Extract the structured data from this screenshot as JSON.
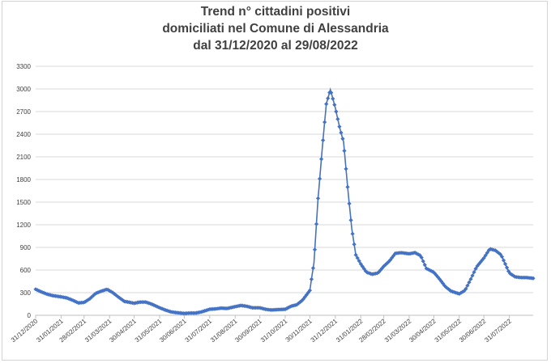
{
  "chart_data": {
    "type": "line",
    "title": [
      "Trend n° cittadini positivi",
      "domiciliati nel Comune di Alessandria",
      "dal 31/12/2020 al 29/08/2022"
    ],
    "xlabel": "",
    "ylabel": "",
    "ylim": [
      0,
      3300
    ],
    "y_ticks": [
      0,
      300,
      600,
      900,
      1200,
      1500,
      1800,
      2100,
      2400,
      2700,
      3000,
      3300
    ],
    "x_ticks": [
      "31/12/2020",
      "31/01/2021",
      "28/02/2021",
      "31/03/2021",
      "30/04/2021",
      "31/05/2021",
      "30/06/2021",
      "31/07/2021",
      "31/08/2021",
      "30/09/2021",
      "31/10/2021",
      "30/11/2021",
      "31/12/2021",
      "31/01/2022",
      "28/02/2022",
      "31/03/2022",
      "30/04/2022",
      "31/05/2022",
      "30/06/2022",
      "31/07/2022"
    ],
    "x_range": [
      "2020-12-31",
      "2022-08-29"
    ],
    "grid": "horizontal",
    "legend": "none",
    "series": [
      {
        "color": "#4472c4",
        "marker": "diamond",
        "points": [
          [
            "2020-12-31",
            345
          ],
          [
            "2021-01-07",
            310
          ],
          [
            "2021-01-14",
            280
          ],
          [
            "2021-01-21",
            260
          ],
          [
            "2021-01-31",
            245
          ],
          [
            "2021-02-07",
            230
          ],
          [
            "2021-02-14",
            200
          ],
          [
            "2021-02-21",
            165
          ],
          [
            "2021-02-28",
            170
          ],
          [
            "2021-03-07",
            220
          ],
          [
            "2021-03-14",
            290
          ],
          [
            "2021-03-21",
            320
          ],
          [
            "2021-03-28",
            345
          ],
          [
            "2021-04-04",
            300
          ],
          [
            "2021-04-11",
            240
          ],
          [
            "2021-04-18",
            185
          ],
          [
            "2021-04-30",
            160
          ],
          [
            "2021-05-07",
            175
          ],
          [
            "2021-05-14",
            175
          ],
          [
            "2021-05-21",
            150
          ],
          [
            "2021-05-31",
            100
          ],
          [
            "2021-06-07",
            70
          ],
          [
            "2021-06-14",
            45
          ],
          [
            "2021-06-21",
            35
          ],
          [
            "2021-06-30",
            25
          ],
          [
            "2021-07-07",
            30
          ],
          [
            "2021-07-14",
            30
          ],
          [
            "2021-07-21",
            45
          ],
          [
            "2021-07-31",
            80
          ],
          [
            "2021-08-07",
            85
          ],
          [
            "2021-08-14",
            95
          ],
          [
            "2021-08-21",
            90
          ],
          [
            "2021-08-31",
            115
          ],
          [
            "2021-09-07",
            130
          ],
          [
            "2021-09-14",
            120
          ],
          [
            "2021-09-21",
            100
          ],
          [
            "2021-09-30",
            100
          ],
          [
            "2021-10-07",
            80
          ],
          [
            "2021-10-14",
            70
          ],
          [
            "2021-10-21",
            75
          ],
          [
            "2021-10-31",
            80
          ],
          [
            "2021-11-07",
            120
          ],
          [
            "2021-11-14",
            140
          ],
          [
            "2021-11-21",
            200
          ],
          [
            "2021-11-30",
            330
          ],
          [
            "2021-12-05",
            700
          ],
          [
            "2021-12-10",
            1550
          ],
          [
            "2021-12-15",
            2200
          ],
          [
            "2021-12-20",
            2800
          ],
          [
            "2021-12-25",
            2990
          ],
          [
            "2021-12-31",
            2750
          ],
          [
            "2022-01-05",
            2500
          ],
          [
            "2022-01-10",
            2300
          ],
          [
            "2022-01-15",
            1700
          ],
          [
            "2022-01-20",
            1150
          ],
          [
            "2022-01-25",
            800
          ],
          [
            "2022-01-31",
            680
          ],
          [
            "2022-02-07",
            570
          ],
          [
            "2022-02-14",
            545
          ],
          [
            "2022-02-21",
            560
          ],
          [
            "2022-02-28",
            650
          ],
          [
            "2022-03-07",
            720
          ],
          [
            "2022-03-14",
            820
          ],
          [
            "2022-03-21",
            830
          ],
          [
            "2022-03-31",
            815
          ],
          [
            "2022-04-07",
            830
          ],
          [
            "2022-04-14",
            790
          ],
          [
            "2022-04-21",
            620
          ],
          [
            "2022-04-30",
            570
          ],
          [
            "2022-05-07",
            480
          ],
          [
            "2022-05-14",
            380
          ],
          [
            "2022-05-21",
            320
          ],
          [
            "2022-05-31",
            285
          ],
          [
            "2022-06-07",
            330
          ],
          [
            "2022-06-14",
            480
          ],
          [
            "2022-06-21",
            640
          ],
          [
            "2022-06-30",
            760
          ],
          [
            "2022-07-07",
            880
          ],
          [
            "2022-07-14",
            860
          ],
          [
            "2022-07-21",
            800
          ],
          [
            "2022-07-31",
            560
          ],
          [
            "2022-08-07",
            510
          ],
          [
            "2022-08-14",
            500
          ],
          [
            "2022-08-21",
            500
          ],
          [
            "2022-08-29",
            490
          ]
        ]
      }
    ]
  }
}
